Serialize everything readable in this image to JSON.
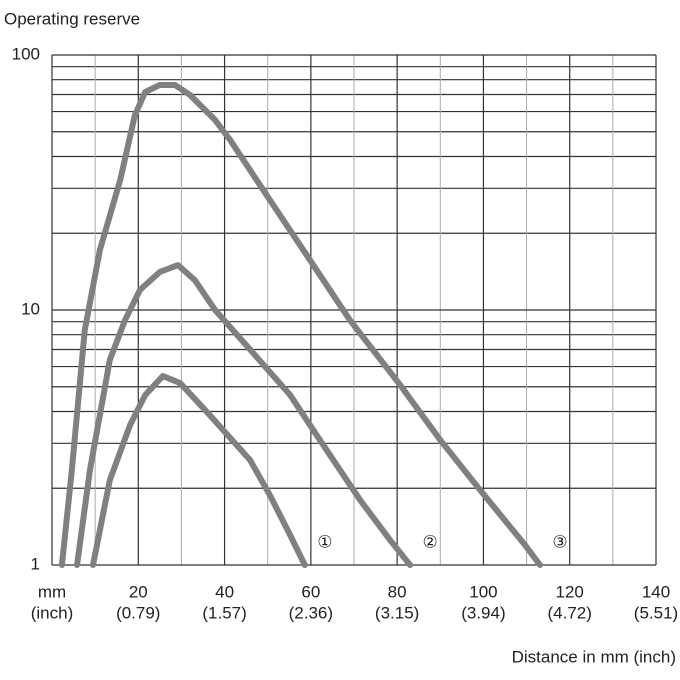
{
  "chart_data": {
    "type": "line",
    "title": "Operating reserve",
    "x_label": "Distance in mm (inch)",
    "xlim": [
      0,
      140
    ],
    "ylim": [
      1,
      100
    ],
    "log_y": true,
    "grid": true,
    "xticks": [
      {
        "value": 0,
        "label": "mm"
      },
      20,
      40,
      60,
      80,
      100,
      120,
      140
    ],
    "xtick_sublabels": [
      "(inch)",
      "(0.79)",
      "(1.57)",
      "(2.36)",
      "(3.15)",
      "(3.94)",
      "(4.72)",
      "(5.51)"
    ],
    "xminorticks": [
      10,
      30,
      50,
      70,
      90,
      110,
      130
    ],
    "yticks": [
      1,
      10,
      100
    ],
    "yminorticks": [
      2,
      3,
      4,
      5,
      6,
      7,
      8,
      9,
      20,
      30,
      40,
      50,
      60,
      70,
      80,
      90
    ],
    "series": [
      {
        "name": "①",
        "color": "#808080",
        "x": [
          9.5,
          13.4,
          18.1,
          21.6,
          25.7,
          29.7,
          35.5,
          40.1,
          45.9,
          50.5,
          55.2,
          58.6
        ],
        "values": [
          1,
          2.15,
          3.54,
          4.64,
          5.51,
          5.17,
          4.05,
          3.32,
          2.58,
          1.88,
          1.31,
          1
        ]
      },
      {
        "name": "②",
        "color": "#808080",
        "x": [
          5.8,
          8.8,
          13.4,
          16.9,
          20.4,
          25,
          29.2,
          33.1,
          37.8,
          45.9,
          55.2,
          62.1,
          71.4,
          78.4,
          83
        ],
        "values": [
          1,
          2.36,
          6.37,
          9.1,
          12,
          14.1,
          15,
          13.1,
          10,
          7,
          4.64,
          3.09,
          1.8,
          1.25,
          1
        ]
      },
      {
        "name": "③",
        "color": "#808080",
        "x": [
          2.3,
          4.6,
          7.6,
          11.1,
          15.8,
          19.2,
          21.6,
          25,
          28.5,
          32,
          37.8,
          41.3,
          50.5,
          59.8,
          69.1,
          80.7,
          90,
          99.2,
          109.6,
          113.1
        ],
        "values": [
          1,
          2.36,
          8.35,
          17.2,
          32.3,
          58,
          71.6,
          76.3,
          76.3,
          69.7,
          55.6,
          46.4,
          27,
          15.7,
          9.1,
          5.08,
          3.09,
          1.97,
          1.2,
          1
        ]
      }
    ]
  }
}
